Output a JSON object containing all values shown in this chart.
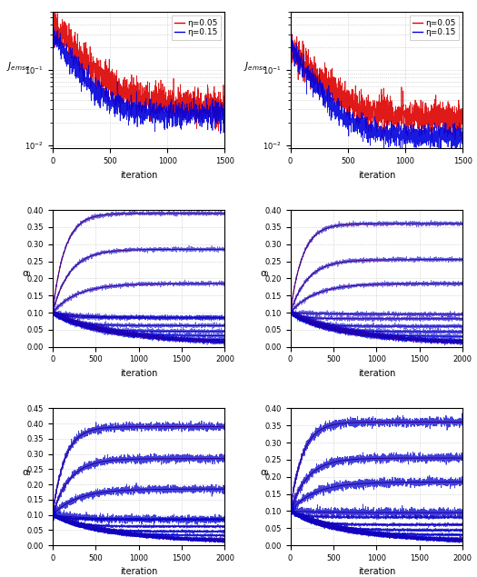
{
  "fig_width": 5.25,
  "fig_height": 6.35,
  "dpi": 100,
  "top": {
    "n": 1500,
    "ylim": [
      0.009,
      0.6
    ],
    "ylabel": "$J_{emse}$",
    "xlabel": "iteration",
    "col0": {
      "s_red": 0.42,
      "e_red": 0.032,
      "s_blue": 0.3,
      "e_blue": 0.025
    },
    "col1": {
      "s_red": 0.2,
      "e_red": 0.022,
      "s_blue": 0.2,
      "e_blue": 0.013
    },
    "color_red": "#dd0000",
    "color_blue": "#0000dd",
    "legend": [
      "η=0.05",
      "η=0.15"
    ]
  },
  "mid": {
    "n": 2000,
    "ylim": [
      0.0,
      0.4
    ],
    "ylabel": "αᵢ",
    "xlabel": "iteration",
    "init": 0.1,
    "col0": {
      "up_finals": [
        0.39,
        0.285,
        0.185,
        0.085
      ],
      "down_finals": [
        0.085,
        0.062,
        0.045,
        0.032,
        0.02,
        0.011,
        0.005,
        0.001
      ]
    },
    "col1": {
      "up_finals": [
        0.36,
        0.255,
        0.185,
        0.095
      ],
      "down_finals": [
        0.082,
        0.06,
        0.044,
        0.03,
        0.018,
        0.01,
        0.004,
        0.001
      ]
    }
  },
  "bot": {
    "n": 2000,
    "ylim_left": [
      0.0,
      0.45
    ],
    "ylim_right": [
      0.0,
      0.4
    ],
    "ylabel": "αᵢ",
    "xlabel": "iteration",
    "init": 0.1,
    "col0": {
      "up_finals": [
        0.39,
        0.285,
        0.185,
        0.085
      ],
      "down_finals": [
        0.085,
        0.062,
        0.045,
        0.032,
        0.02,
        0.011,
        0.005,
        0.001
      ]
    },
    "col1": {
      "up_finals": [
        0.36,
        0.255,
        0.185,
        0.095
      ],
      "down_finals": [
        0.082,
        0.06,
        0.044,
        0.03,
        0.018,
        0.01,
        0.004,
        0.001
      ]
    }
  },
  "line_colors": [
    "#cc0000",
    "#bb0022",
    "#aa0044",
    "#880066",
    "#660088",
    "#4400aa",
    "#2200cc",
    "#0000ee"
  ],
  "color_blue": "#0000cc",
  "color_red": "#cc0000",
  "bg": "#ffffff",
  "grid_color": "#bbbbbb",
  "grid_ls": ":"
}
